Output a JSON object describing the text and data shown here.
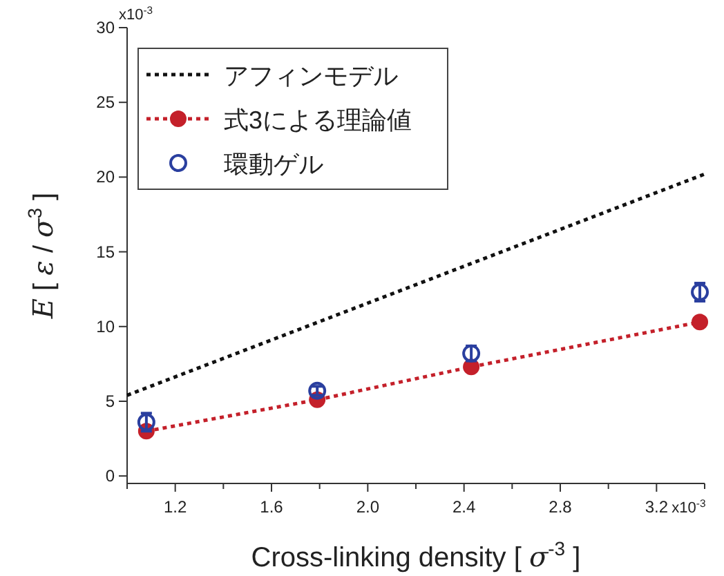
{
  "chart_data": {
    "type": "line",
    "xlabel": "Cross-linking density [ *σ*$^{-3}$ ]",
    "ylabel": "*E* [ *ε* / *σ*$^{3}$ ]",
    "xlim": [
      1.0,
      3.4
    ],
    "ylim": [
      -0.5,
      30
    ],
    "xticks": [
      {
        "value": 1.0,
        "label": null
      },
      1.2,
      {
        "value": 1.4,
        "label": null
      },
      1.6,
      {
        "value": 1.8,
        "label": null
      },
      "2.0",
      {
        "value": 2.2,
        "label": null
      },
      2.4,
      {
        "value": 2.6,
        "label": null
      },
      2.8,
      {
        "value": 3.0,
        "label": null
      },
      3.2,
      {
        "value": 3.4,
        "label": null
      }
    ],
    "yticks": [
      0,
      5,
      10,
      15,
      20,
      25,
      30
    ],
    "annotations": [
      "x10$^{-3}$",
      "x10$^{-3}$"
    ],
    "legend": "top left",
    "series": [
      {
        "name": "アフィンモデル",
        "color": "#111111",
        "line_style": "dotted",
        "marker": "none",
        "x": [
          1.0,
          3.4
        ],
        "values": [
          5.4,
          20.2
        ]
      },
      {
        "name": "式3による理論値",
        "color": "#c4202a",
        "line_style": "dotted",
        "marker": "circle",
        "x": [
          1.08,
          1.79,
          2.43,
          3.38
        ],
        "values": [
          3.0,
          5.1,
          7.3,
          10.3
        ]
      },
      {
        "name": "環動ゲル",
        "type": "scatter",
        "color": "#2a3f9f",
        "marker": "circle",
        "x": [
          1.08,
          1.79,
          2.43,
          3.38
        ],
        "values": [
          3.6,
          5.7,
          8.2,
          12.3
        ],
        "errors": [
          0.6,
          0.3,
          0.5,
          0.6
        ]
      }
    ]
  }
}
